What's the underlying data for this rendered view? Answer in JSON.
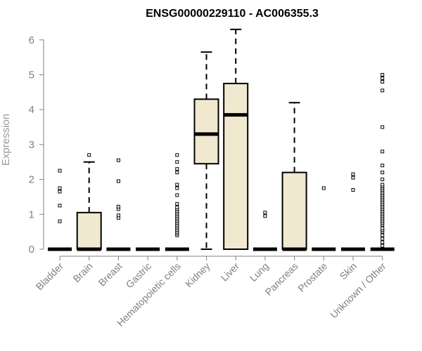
{
  "chart_data": {
    "type": "box",
    "title": "ENSG00000229110 - AC006355.3",
    "xlabel": "",
    "ylabel": "Expression",
    "ylim": [
      0,
      6.3
    ],
    "yticks": [
      0,
      1,
      2,
      3,
      4,
      5,
      6
    ],
    "grid": false,
    "legend": "none",
    "box_fill": "#f0e9cf",
    "box_stroke": "#000000",
    "axis_color": "#808080",
    "categories": [
      "Bladder",
      "Brain",
      "Breast",
      "Gastric",
      "Hematopoietic cells",
      "Kidney",
      "Liver",
      "Lung",
      "Pancreas",
      "Prostate",
      "Skin",
      "Unknown / Other"
    ],
    "boxes": [
      {
        "category": "Bladder",
        "whisker_low": 0,
        "q1": 0,
        "median": 0,
        "q3": 0,
        "whisker_high": 0,
        "outliers": [
          0.8,
          1.25,
          1.65,
          1.75,
          2.25
        ]
      },
      {
        "category": "Brain",
        "whisker_low": 0,
        "q1": 0,
        "median": 0,
        "q3": 1.05,
        "whisker_high": 2.5,
        "outliers": [
          2.7
        ]
      },
      {
        "category": "Breast",
        "whisker_low": 0,
        "q1": 0,
        "median": 0,
        "q3": 0,
        "whisker_high": 0,
        "outliers": [
          0.9,
          0.97,
          1.15,
          1.22,
          1.95,
          2.55
        ]
      },
      {
        "category": "Gastric",
        "whisker_low": 0,
        "q1": 0,
        "median": 0,
        "q3": 0,
        "whisker_high": 0,
        "outliers": []
      },
      {
        "category": "Hematopoietic cells",
        "whisker_low": 0,
        "q1": 0,
        "median": 0,
        "q3": 0,
        "whisker_high": 0,
        "outliers": [
          0.4,
          0.45,
          0.5,
          0.55,
          0.6,
          0.65,
          0.7,
          0.75,
          0.8,
          0.85,
          0.9,
          0.95,
          1.0,
          1.05,
          1.1,
          1.15,
          1.2,
          1.3,
          1.55,
          1.75,
          1.85,
          2.2,
          2.3,
          2.5,
          2.7
        ]
      },
      {
        "category": "Kidney",
        "whisker_low": 0,
        "q1": 2.45,
        "median": 3.3,
        "q3": 4.3,
        "whisker_high": 5.65,
        "outliers": []
      },
      {
        "category": "Liver",
        "whisker_low": 0,
        "q1": 0,
        "median": 3.85,
        "q3": 4.75,
        "whisker_high": 6.3,
        "outliers": []
      },
      {
        "category": "Lung",
        "whisker_low": 0,
        "q1": 0,
        "median": 0,
        "q3": 0,
        "whisker_high": 0,
        "outliers": [
          0.95,
          1.05
        ]
      },
      {
        "category": "Pancreas",
        "whisker_low": 0,
        "q1": 0,
        "median": 0,
        "q3": 2.2,
        "whisker_high": 4.2,
        "outliers": []
      },
      {
        "category": "Prostate",
        "whisker_low": 0,
        "q1": 0,
        "median": 0,
        "q3": 0,
        "whisker_high": 0,
        "outliers": [
          1.75
        ]
      },
      {
        "category": "Skin",
        "whisker_low": 0,
        "q1": 0,
        "median": 0,
        "q3": 0,
        "whisker_high": 0,
        "outliers": [
          1.7,
          2.05,
          2.15
        ]
      },
      {
        "category": "Unknown / Other",
        "whisker_low": 0,
        "q1": 0,
        "median": 0,
        "q3": 0,
        "whisker_high": 0,
        "outliers": [
          0.1,
          0.2,
          0.3,
          0.4,
          0.5,
          0.55,
          0.6,
          0.7,
          0.75,
          0.8,
          0.85,
          0.9,
          0.95,
          1.0,
          1.05,
          1.1,
          1.15,
          1.2,
          1.25,
          1.3,
          1.35,
          1.4,
          1.45,
          1.5,
          1.55,
          1.6,
          1.65,
          1.7,
          1.75,
          1.8,
          1.85,
          2.0,
          2.2,
          2.4,
          2.8,
          3.5,
          4.55,
          4.8,
          4.9,
          5.0
        ]
      }
    ]
  }
}
